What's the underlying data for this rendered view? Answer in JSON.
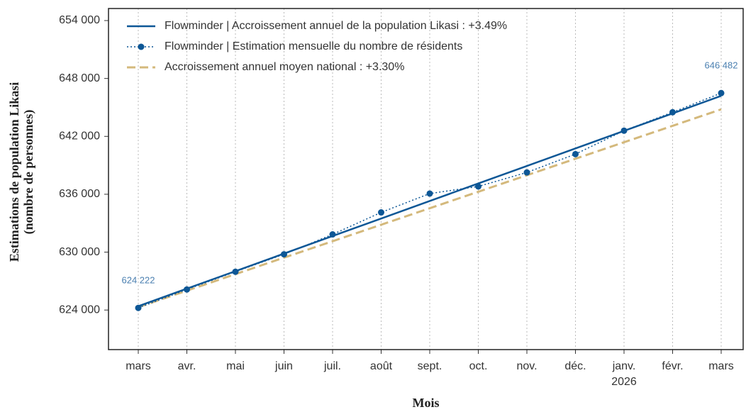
{
  "chart_data": {
    "type": "line",
    "x_label": "Mois",
    "y_label": "Estimations de population Likasi\n(nombre de personnes)",
    "categories": [
      "mars",
      "avr.",
      "mai",
      "juin",
      "juil.",
      "août",
      "sept.",
      "oct.",
      "nov.",
      "déc.",
      "janv.\n2026",
      "févr.",
      "mars"
    ],
    "series": [
      {
        "name": "Flowminder | Accroissement annuel de la population Likasi : +3.49%",
        "color": "#0d5796",
        "style": "solid",
        "values": [
          624400,
          626220,
          628030,
          629850,
          631670,
          633480,
          635300,
          637120,
          638930,
          640750,
          642570,
          644380,
          646200
        ]
      },
      {
        "name": "Flowminder | Estimation mensuelle du nombre de résidents",
        "color": "#0d5796",
        "style": "dotted-markers",
        "values": [
          624222,
          626130,
          627970,
          629780,
          631840,
          634120,
          636070,
          636810,
          638260,
          640160,
          642590,
          644500,
          646482
        ],
        "value_labels": [
          "624 222",
          null,
          null,
          null,
          null,
          null,
          null,
          null,
          null,
          null,
          null,
          null,
          "646 482"
        ]
      },
      {
        "name": "Accroissement annuel moyen national : +3.30%",
        "color": "#d4b97c",
        "style": "dashed",
        "values": [
          624300,
          626010,
          627720,
          629430,
          631130,
          632840,
          634550,
          636260,
          637970,
          639680,
          641390,
          643090,
          644800
        ]
      }
    ],
    "ylim": [
      619900,
      655250
    ],
    "yticks": [
      {
        "value": 624000,
        "label": "624 000"
      },
      {
        "value": 630000,
        "label": "630 000"
      },
      {
        "value": 636000,
        "label": "636 000"
      },
      {
        "value": 642000,
        "label": "642 000"
      },
      {
        "value": 648000,
        "label": "648 000"
      },
      {
        "value": 654000,
        "label": "654 000"
      }
    ],
    "grid": "x",
    "legend": "upper left"
  }
}
